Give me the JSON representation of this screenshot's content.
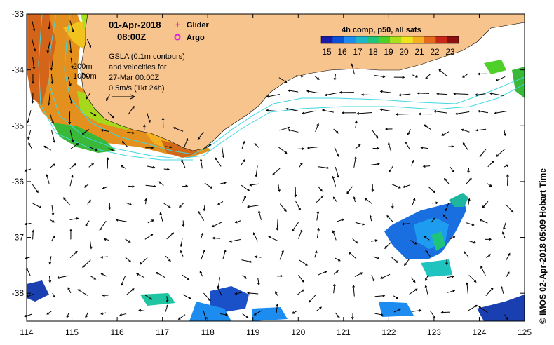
{
  "header": {
    "date": "01-Apr-2018",
    "time": "08:00Z",
    "legend_glider": "Glider",
    "legend_argo": "Argo"
  },
  "notes": {
    "line1": "GSLA (0.1m contours)",
    "line2": "and velocities for",
    "line3": "27-Mar 00:00Z",
    "line4": "0.5m/s (1kt 24h)",
    "depth1": "200m",
    "depth2": "1000m"
  },
  "colorbar": {
    "title": "4h comp, p50, all sats",
    "ticks": [
      "15",
      "16",
      "17",
      "18",
      "19",
      "20",
      "21",
      "22",
      "23"
    ],
    "colors": [
      "#1a1aa8",
      "#0a4fd6",
      "#1d8cf0",
      "#1fb6c8",
      "#1fc47a",
      "#4fd028",
      "#a8e01c",
      "#f0e41c",
      "#f4b020",
      "#e46a1c",
      "#c8281a",
      "#8c1010"
    ]
  },
  "axes": {
    "x_ticks": [
      "114",
      "115",
      "116",
      "117",
      "118",
      "119",
      "120",
      "121",
      "122",
      "123",
      "124",
      "125"
    ],
    "y_ticks": [
      "-33",
      "-34",
      "-35",
      "-36",
      "-37",
      "-38"
    ],
    "xlim": [
      114,
      125
    ],
    "ylim": [
      -38.5,
      -33
    ]
  },
  "credit": "© IMOS 02-Apr-2018 05:09 Hobart Time",
  "colors": {
    "land": "#f8c48e",
    "contour": "#40d8e0",
    "glider": "#e020e0",
    "argo": "#e020e0"
  }
}
